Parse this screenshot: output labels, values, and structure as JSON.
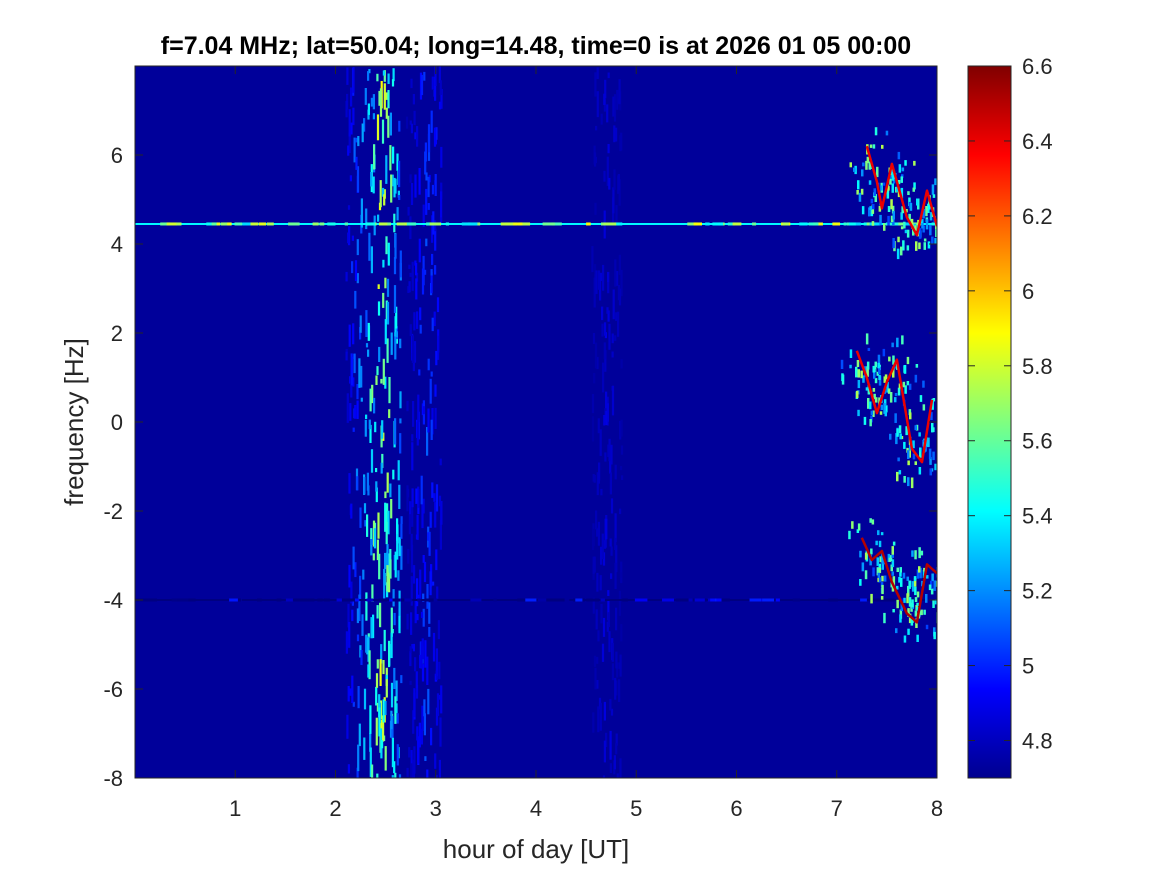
{
  "chart_data": {
    "type": "heatmap",
    "title": "f=7.04 MHz;  lat=50.04; long=14.48, time=0 is at 2026 01 05 00:00",
    "xlabel": "hour of day [UT]",
    "ylabel": "frequency [Hz]",
    "xlim": [
      0,
      8
    ],
    "ylim": [
      -8,
      8
    ],
    "xticks": [
      1,
      2,
      3,
      4,
      5,
      6,
      7,
      8
    ],
    "yticks": [
      -8,
      -6,
      -4,
      -2,
      0,
      2,
      4,
      6
    ],
    "colormap": "jet",
    "clim": [
      4.7,
      6.6
    ],
    "colorbar_ticks": [
      4.8,
      5,
      5.2,
      5.4,
      5.6,
      5.8,
      6,
      6.2,
      6.4,
      6.6
    ],
    "background_value": 4.75,
    "features": [
      {
        "kind": "vertical_band",
        "x_range": [
          2.1,
          2.65
        ],
        "peak_x": 2.45,
        "level": 5.55
      },
      {
        "kind": "vertical_band",
        "x_range": [
          2.7,
          3.05
        ],
        "peak_x": 2.9,
        "level": 5.0
      },
      {
        "kind": "vertical_band",
        "x_range": [
          4.55,
          4.85
        ],
        "peak_x": 4.7,
        "level": 4.85
      },
      {
        "kind": "horizontal_line",
        "y": 4.45,
        "x_range": [
          0,
          8
        ],
        "level": 5.9
      },
      {
        "kind": "horizontal_line",
        "y": -4.0,
        "x_range": [
          0,
          7.9
        ],
        "level": 5.0
      },
      {
        "kind": "doppler_trace",
        "hours": [
          7.3,
          7.4,
          7.45,
          7.55,
          7.7,
          7.8,
          7.9,
          8.0
        ],
        "freqs": [
          6.2,
          5.4,
          4.8,
          5.8,
          4.6,
          4.2,
          5.2,
          4.4
        ],
        "level": 6.4
      },
      {
        "kind": "doppler_trace",
        "hours": [
          7.2,
          7.3,
          7.4,
          7.5,
          7.6,
          7.75,
          7.85,
          7.95
        ],
        "freqs": [
          1.6,
          1.0,
          0.2,
          0.9,
          1.4,
          -0.6,
          -0.9,
          0.5
        ],
        "level": 6.4
      },
      {
        "kind": "doppler_trace",
        "hours": [
          7.25,
          7.35,
          7.45,
          7.55,
          7.7,
          7.8,
          7.9,
          8.0
        ],
        "freqs": [
          -2.6,
          -3.1,
          -2.9,
          -3.6,
          -4.3,
          -4.5,
          -3.2,
          -3.4
        ],
        "level": 6.5
      }
    ]
  }
}
